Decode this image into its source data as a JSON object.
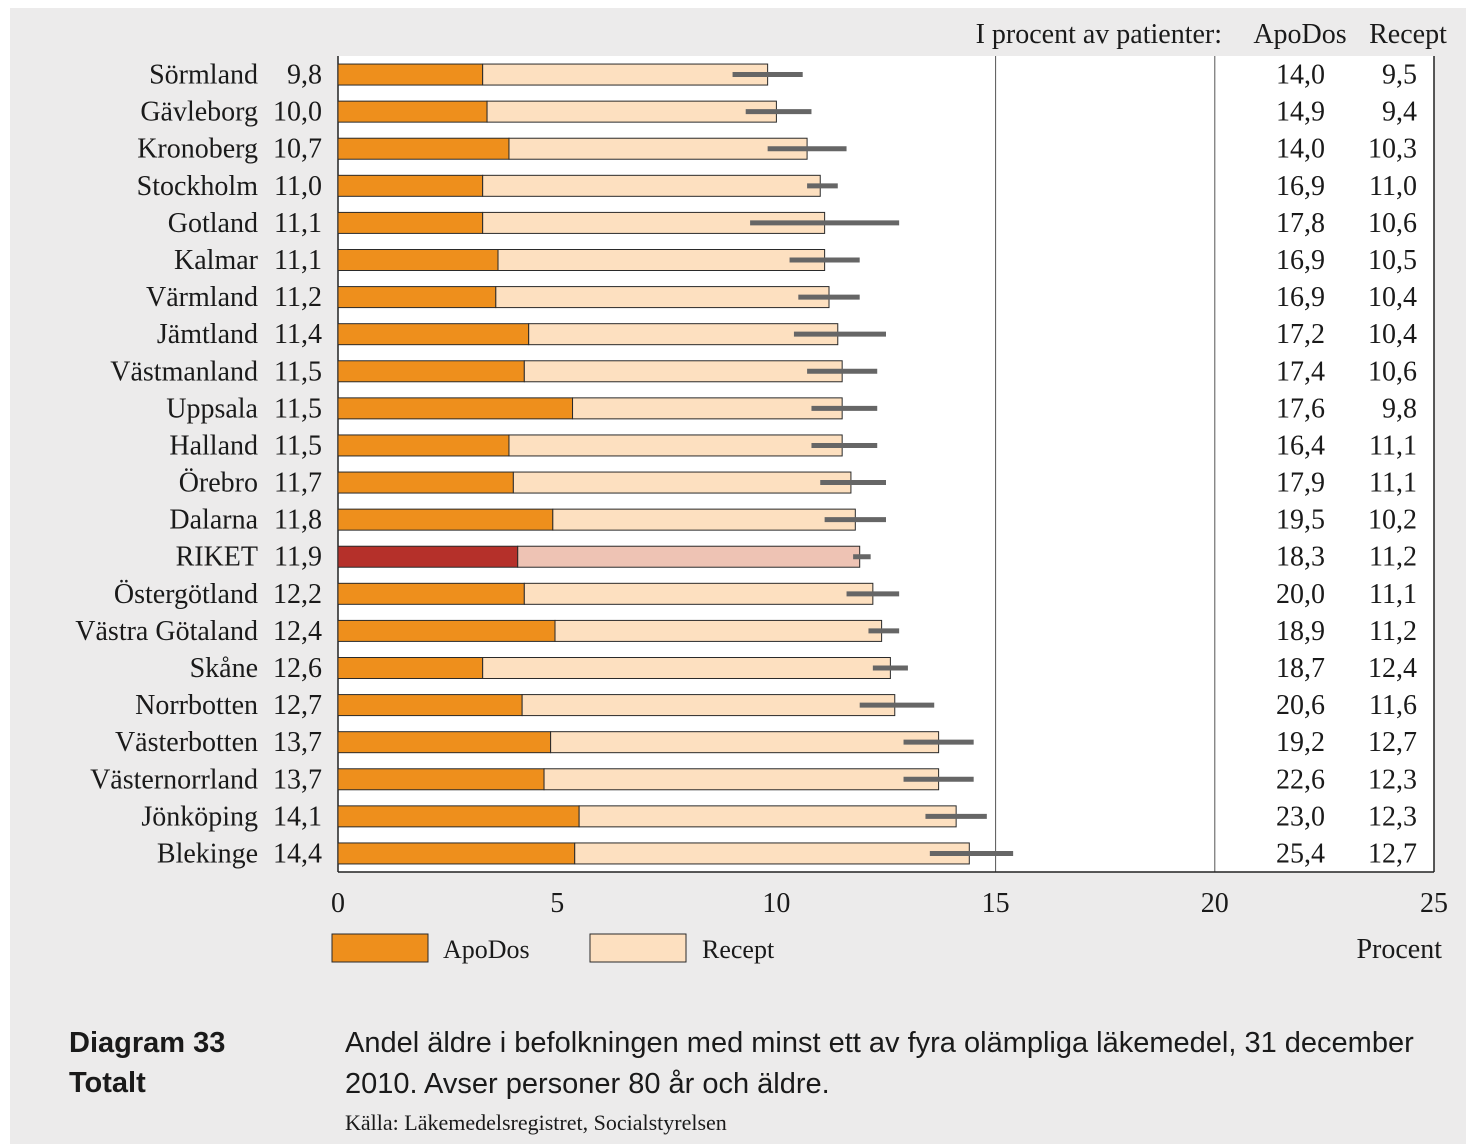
{
  "chart_data": {
    "type": "bar",
    "stacked": true,
    "orientation": "horizontal",
    "categories": [
      "Sörmland",
      "Gävleborg",
      "Kronoberg",
      "Stockholm",
      "Gotland",
      "Kalmar",
      "Värmland",
      "Jämtland",
      "Västmanland",
      "Uppsala",
      "Halland",
      "Örebro",
      "Dalarna",
      "RIKET",
      "Östergötland",
      "Västra Götaland",
      "Skåne",
      "Norrbotten",
      "Västerbotten",
      "Västernorrland",
      "Jönköping",
      "Blekinge"
    ],
    "total_labels": [
      "9,8",
      "10,0",
      "10,7",
      "11,0",
      "11,1",
      "11,1",
      "11,2",
      "11,4",
      "11,5",
      "11,5",
      "11,5",
      "11,7",
      "11,8",
      "11,9",
      "12,2",
      "12,4",
      "12,6",
      "12,7",
      "13,7",
      "13,7",
      "14,1",
      "14,4"
    ],
    "totals": [
      9.8,
      10.0,
      10.7,
      11.0,
      11.1,
      11.1,
      11.2,
      11.4,
      11.5,
      11.5,
      11.5,
      11.7,
      11.8,
      11.9,
      12.2,
      12.4,
      12.6,
      12.7,
      13.7,
      13.7,
      14.1,
      14.4
    ],
    "series": [
      {
        "name": "ApoDos",
        "values": [
          3.3,
          3.4,
          3.9,
          3.3,
          3.3,
          3.65,
          3.6,
          4.35,
          4.25,
          5.35,
          3.9,
          4.0,
          4.9,
          4.1,
          4.25,
          4.95,
          3.3,
          4.2,
          4.85,
          4.7,
          5.5,
          5.4
        ]
      },
      {
        "name": "Recept",
        "values": [
          6.5,
          6.6,
          6.8,
          7.7,
          7.8,
          7.45,
          7.6,
          7.05,
          7.25,
          6.15,
          7.6,
          7.7,
          6.9,
          7.8,
          7.95,
          7.45,
          9.3,
          8.5,
          8.85,
          9.0,
          8.6,
          9.0
        ]
      }
    ],
    "error_bars": [
      [
        9.0,
        10.6
      ],
      [
        9.3,
        10.8
      ],
      [
        9.8,
        11.6
      ],
      [
        10.7,
        11.4
      ],
      [
        9.4,
        12.8
      ],
      [
        10.3,
        11.9
      ],
      [
        10.5,
        11.9
      ],
      [
        10.4,
        12.5
      ],
      [
        10.7,
        12.3
      ],
      [
        10.8,
        12.3
      ],
      [
        10.8,
        12.3
      ],
      [
        11.0,
        12.5
      ],
      [
        11.1,
        12.5
      ],
      [
        11.75,
        12.15
      ],
      [
        11.6,
        12.8
      ],
      [
        12.1,
        12.8
      ],
      [
        12.2,
        13.0
      ],
      [
        11.9,
        13.6
      ],
      [
        12.9,
        14.5
      ],
      [
        12.9,
        14.5
      ],
      [
        13.4,
        14.8
      ],
      [
        13.5,
        15.4
      ]
    ],
    "highlight_category": "RIKET",
    "xlim": [
      0,
      25
    ],
    "xticks": [
      "0",
      "5",
      "10",
      "15",
      "20",
      "25"
    ],
    "xlabel": "Procent",
    "vertical_gridlines": [
      15,
      20
    ],
    "table_header": "I procent av patienter:",
    "table_columns": [
      "ApoDos",
      "Recept"
    ],
    "table_values": [
      [
        "14,0",
        "9,5"
      ],
      [
        "14,9",
        "9,4"
      ],
      [
        "14,0",
        "10,3"
      ],
      [
        "16,9",
        "11,0"
      ],
      [
        "17,8",
        "10,6"
      ],
      [
        "16,9",
        "10,5"
      ],
      [
        "16,9",
        "10,4"
      ],
      [
        "17,2",
        "10,4"
      ],
      [
        "17,4",
        "10,6"
      ],
      [
        "17,6",
        "9,8"
      ],
      [
        "16,4",
        "11,1"
      ],
      [
        "17,9",
        "11,1"
      ],
      [
        "19,5",
        "10,2"
      ],
      [
        "18,3",
        "11,2"
      ],
      [
        "20,0",
        "11,1"
      ],
      [
        "18,9",
        "11,2"
      ],
      [
        "18,7",
        "12,4"
      ],
      [
        "20,6",
        "11,6"
      ],
      [
        "19,2",
        "12,7"
      ],
      [
        "22,6",
        "12,3"
      ],
      [
        "23,0",
        "12,3"
      ],
      [
        "25,4",
        "12,7"
      ]
    ],
    "legend": [
      "ApoDos",
      "Recept"
    ],
    "legend_position": "bottom",
    "colors": {
      "apodos": "#ee8f1c",
      "recept": "#fde0c0",
      "riket_apodos": "#b5302a",
      "riket_recept": "#eec3b4",
      "error_bar": "#666666",
      "bar_border": "#2a2a2a"
    }
  },
  "caption": {
    "label_line1": "Diagram 33",
    "label_line2": "Totalt",
    "text": "Andel äldre i befolkningen med minst ett av fyra olämpliga läkemedel, 31 december 2010. Avser personer 80 år och äldre.",
    "source": "Källa: Läkemedelsregistret, Socialstyrelsen"
  }
}
